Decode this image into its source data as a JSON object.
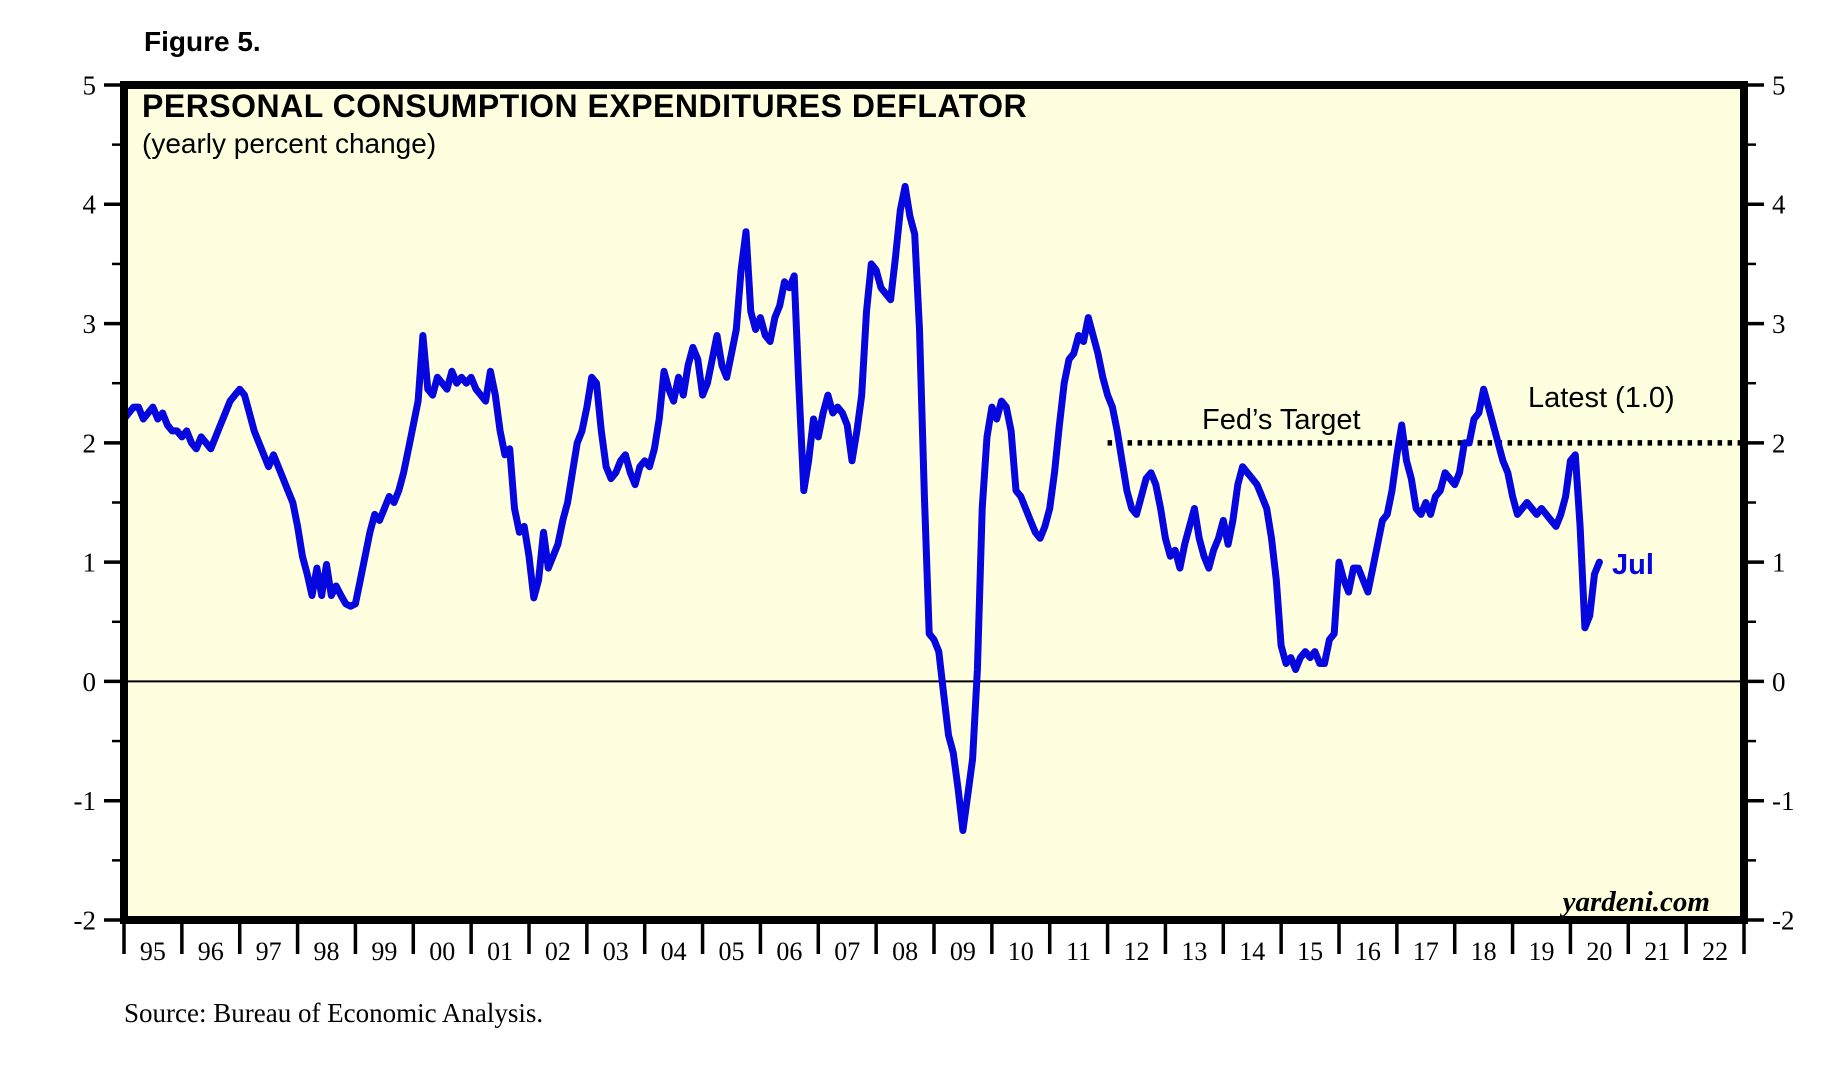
{
  "figure_label": "Figure 5.",
  "title": "PERSONAL CONSUMPTION EXPENDITURES DEFLATOR",
  "subtitle": "(yearly percent change)",
  "source_note": "Source: Bureau of Economic Analysis.",
  "watermark": "yardeni.com",
  "annotations": {
    "fed_target_label": "Fed’s Target",
    "latest_label": "Latest (1.0)",
    "last_point_label": "Jul"
  },
  "colors": {
    "line": "#0606df",
    "plot_background": "#ffffe0",
    "axis": "#000000",
    "target_line": "#000000",
    "zero_line": "#000000",
    "last_point_label_color": "#0606df"
  },
  "chart_data": {
    "type": "line",
    "title": "PERSONAL CONSUMPTION EXPENDITURES DEFLATOR",
    "subtitle": "(yearly percent change)",
    "ylabel": "yearly percent change",
    "ylim": [
      -2,
      5
    ],
    "y_major_ticks": [
      -2,
      -1,
      0,
      1,
      2,
      3,
      4,
      5
    ],
    "y_minor_ticks": [
      -1.5,
      -0.5,
      0.5,
      1.5,
      2.5,
      3.5,
      4.5
    ],
    "x_start_year": 1995,
    "x_end_year": 2023,
    "x_tick_labels": [
      "95",
      "96",
      "97",
      "98",
      "99",
      "00",
      "01",
      "02",
      "03",
      "04",
      "05",
      "06",
      "07",
      "08",
      "09",
      "10",
      "11",
      "12",
      "13",
      "14",
      "15",
      "16",
      "17",
      "18",
      "19",
      "20",
      "21",
      "22"
    ],
    "grid": false,
    "zero_line": true,
    "fed_target_value": 2.0,
    "fed_target_start_year": 2012,
    "latest_value": 1.0,
    "latest_month_label": "Jul",
    "series": [
      {
        "name": "PCE deflator (yearly percent change)",
        "start": "1995-01",
        "end": "2020-07",
        "frequency": "monthly",
        "values_by_year": {
          "1995": [
            2.2,
            2.25,
            2.3,
            2.3,
            2.2,
            2.25,
            2.3,
            2.2,
            2.25,
            2.15,
            2.1,
            2.1
          ],
          "1996": [
            2.05,
            2.1,
            2.0,
            1.95,
            2.05,
            2.0,
            1.95,
            2.05,
            2.15,
            2.25,
            2.35,
            2.4
          ],
          "1997": [
            2.45,
            2.4,
            2.25,
            2.1,
            2.0,
            1.9,
            1.8,
            1.9,
            1.8,
            1.7,
            1.6,
            1.5
          ],
          "1998": [
            1.3,
            1.05,
            0.9,
            0.72,
            0.95,
            0.72,
            0.98,
            0.72,
            0.8,
            0.72,
            0.65,
            0.63
          ],
          "1999": [
            0.65,
            0.85,
            1.05,
            1.25,
            1.4,
            1.35,
            1.45,
            1.55,
            1.5,
            1.6,
            1.75,
            1.95
          ],
          "2000": [
            2.15,
            2.35,
            2.9,
            2.45,
            2.4,
            2.55,
            2.5,
            2.45,
            2.6,
            2.5,
            2.55,
            2.5
          ],
          "2001": [
            2.55,
            2.45,
            2.4,
            2.35,
            2.6,
            2.4,
            2.1,
            1.9,
            1.95,
            1.45,
            1.25,
            1.3
          ],
          "2002": [
            1.05,
            0.7,
            0.85,
            1.25,
            0.95,
            1.05,
            1.15,
            1.35,
            1.5,
            1.75,
            2.0,
            2.1
          ],
          "2003": [
            2.3,
            2.55,
            2.5,
            2.1,
            1.8,
            1.7,
            1.75,
            1.85,
            1.9,
            1.75,
            1.65,
            1.8
          ],
          "2004": [
            1.85,
            1.8,
            1.95,
            2.2,
            2.6,
            2.45,
            2.35,
            2.55,
            2.4,
            2.65,
            2.8,
            2.7
          ],
          "2005": [
            2.4,
            2.5,
            2.7,
            2.9,
            2.65,
            2.55,
            2.75,
            2.95,
            3.45,
            3.77,
            3.1,
            2.95
          ],
          "2006": [
            3.05,
            2.9,
            2.85,
            3.05,
            3.15,
            3.35,
            3.3,
            3.4,
            2.45,
            1.6,
            1.85,
            2.2
          ],
          "2007": [
            2.05,
            2.25,
            2.4,
            2.25,
            2.3,
            2.25,
            2.15,
            1.85,
            2.1,
            2.4,
            3.1,
            3.5
          ],
          "2008": [
            3.45,
            3.3,
            3.25,
            3.2,
            3.55,
            3.95,
            4.15,
            3.9,
            3.75,
            2.95,
            1.55,
            0.4
          ],
          "2009": [
            0.35,
            0.25,
            -0.1,
            -0.45,
            -0.6,
            -0.9,
            -1.25,
            -0.95,
            -0.65,
            0.1,
            1.45,
            2.05
          ],
          "2010": [
            2.3,
            2.2,
            2.35,
            2.3,
            2.1,
            1.6,
            1.55,
            1.45,
            1.35,
            1.25,
            1.2,
            1.3
          ],
          "2011": [
            1.45,
            1.75,
            2.15,
            2.5,
            2.7,
            2.75,
            2.9,
            2.85,
            3.05,
            2.9,
            2.75,
            2.55
          ],
          "2012": [
            2.4,
            2.3,
            2.1,
            1.85,
            1.6,
            1.45,
            1.4,
            1.55,
            1.7,
            1.75,
            1.65,
            1.45
          ],
          "2013": [
            1.2,
            1.05,
            1.1,
            0.95,
            1.15,
            1.3,
            1.45,
            1.2,
            1.05,
            0.95,
            1.1,
            1.2
          ],
          "2014": [
            1.35,
            1.15,
            1.35,
            1.65,
            1.8,
            1.75,
            1.7,
            1.65,
            1.55,
            1.45,
            1.2,
            0.85
          ],
          "2015": [
            0.3,
            0.15,
            0.2,
            0.1,
            0.2,
            0.25,
            0.2,
            0.25,
            0.15,
            0.15,
            0.35,
            0.4
          ],
          "2016": [
            1.0,
            0.85,
            0.75,
            0.95,
            0.95,
            0.85,
            0.75,
            0.95,
            1.15,
            1.35,
            1.4,
            1.6
          ],
          "2017": [
            1.9,
            2.15,
            1.85,
            1.7,
            1.45,
            1.4,
            1.5,
            1.4,
            1.55,
            1.6,
            1.75,
            1.7
          ],
          "2018": [
            1.65,
            1.75,
            2.0,
            2.0,
            2.2,
            2.25,
            2.45,
            2.3,
            2.15,
            2.0,
            1.85,
            1.75
          ],
          "2019": [
            1.55,
            1.4,
            1.45,
            1.5,
            1.45,
            1.4,
            1.45,
            1.4,
            1.35,
            1.3,
            1.4,
            1.55
          ],
          "2020": [
            1.85,
            1.9,
            1.3,
            0.45,
            0.55,
            0.9,
            1.0
          ]
        }
      }
    ]
  }
}
